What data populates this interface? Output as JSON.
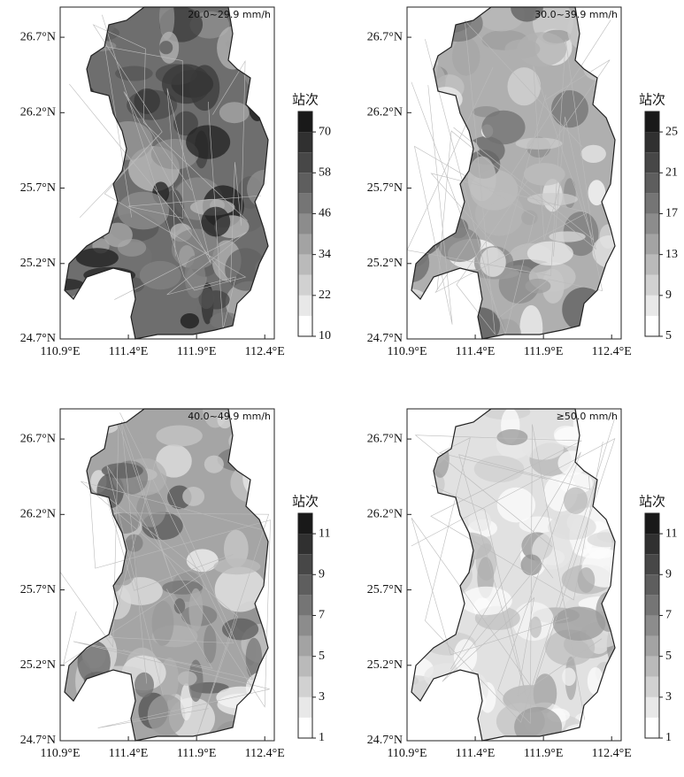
{
  "panels": [
    {
      "title": "20.0~29.9 mm/h",
      "xlim": [
        110.9,
        112.47
      ],
      "ylim": [
        24.7,
        26.9
      ],
      "xticks": [
        {
          "value": 110.9,
          "label": "110.9°E"
        },
        {
          "value": 111.4,
          "label": "111.4°E"
        },
        {
          "value": 111.9,
          "label": "111.9°E"
        },
        {
          "value": 112.4,
          "label": "112.4°E"
        }
      ],
      "yticks": [
        {
          "value": 24.7,
          "label": "24.7°N"
        },
        {
          "value": 25.2,
          "label": "25.2°N"
        },
        {
          "value": 25.7,
          "label": "25.7°N"
        },
        {
          "value": 26.2,
          "label": "26.2°N"
        },
        {
          "value": 26.7,
          "label": "26.7°N"
        }
      ],
      "colorbar": {
        "label": "站次",
        "lim": [
          10,
          76
        ],
        "ticks": [
          10,
          22,
          34,
          46,
          58,
          70
        ]
      }
    },
    {
      "title": "30.0~39.9 mm/h",
      "xlim": [
        110.9,
        112.47
      ],
      "ylim": [
        24.7,
        26.9
      ],
      "xticks": [
        {
          "value": 110.9,
          "label": "110.9°E"
        },
        {
          "value": 111.4,
          "label": "111.4°E"
        },
        {
          "value": 111.9,
          "label": "111.9°E"
        },
        {
          "value": 112.4,
          "label": "112.4°E"
        }
      ],
      "yticks": [
        {
          "value": 24.7,
          "label": "24.7°N"
        },
        {
          "value": 25.2,
          "label": "25.2°N"
        },
        {
          "value": 25.7,
          "label": "25.7°N"
        },
        {
          "value": 26.2,
          "label": "26.2°N"
        },
        {
          "value": 26.7,
          "label": "26.7°N"
        }
      ],
      "colorbar": {
        "label": "站次",
        "lim": [
          5,
          27
        ],
        "ticks": [
          5,
          9,
          13,
          17,
          21,
          25
        ]
      }
    },
    {
      "title": "40.0~49.9 mm/h",
      "xlim": [
        110.9,
        112.47
      ],
      "ylim": [
        24.7,
        26.9
      ],
      "xticks": [
        {
          "value": 110.9,
          "label": "110.9°E"
        },
        {
          "value": 111.4,
          "label": "111.4°E"
        },
        {
          "value": 111.9,
          "label": "111.9°E"
        },
        {
          "value": 112.4,
          "label": "112.4°E"
        }
      ],
      "yticks": [
        {
          "value": 24.7,
          "label": "24.7°N"
        },
        {
          "value": 25.2,
          "label": "25.2°N"
        },
        {
          "value": 25.7,
          "label": "25.7°N"
        },
        {
          "value": 26.2,
          "label": "26.2°N"
        },
        {
          "value": 26.7,
          "label": "26.7°N"
        }
      ],
      "colorbar": {
        "label": "站次",
        "lim": [
          1,
          12
        ],
        "ticks": [
          1,
          3,
          5,
          7,
          9,
          11
        ]
      }
    },
    {
      "title": "≥50.0 mm/h",
      "xlim": [
        110.9,
        112.47
      ],
      "ylim": [
        24.7,
        26.9
      ],
      "xticks": [
        {
          "value": 110.9,
          "label": "110.9°E"
        },
        {
          "value": 111.4,
          "label": "111.4°E"
        },
        {
          "value": 111.9,
          "label": "111.9°E"
        },
        {
          "value": 112.4,
          "label": "112.4°E"
        }
      ],
      "yticks": [
        {
          "value": 24.7,
          "label": "24.7°N"
        },
        {
          "value": 25.2,
          "label": "25.2°N"
        },
        {
          "value": 25.7,
          "label": "25.7°N"
        },
        {
          "value": 26.2,
          "label": "26.2°N"
        },
        {
          "value": 26.7,
          "label": "26.7°N"
        }
      ],
      "colorbar": {
        "label": "站次",
        "lim": [
          1,
          12
        ],
        "ticks": [
          1,
          3,
          5,
          7,
          9,
          11
        ]
      }
    }
  ]
}
